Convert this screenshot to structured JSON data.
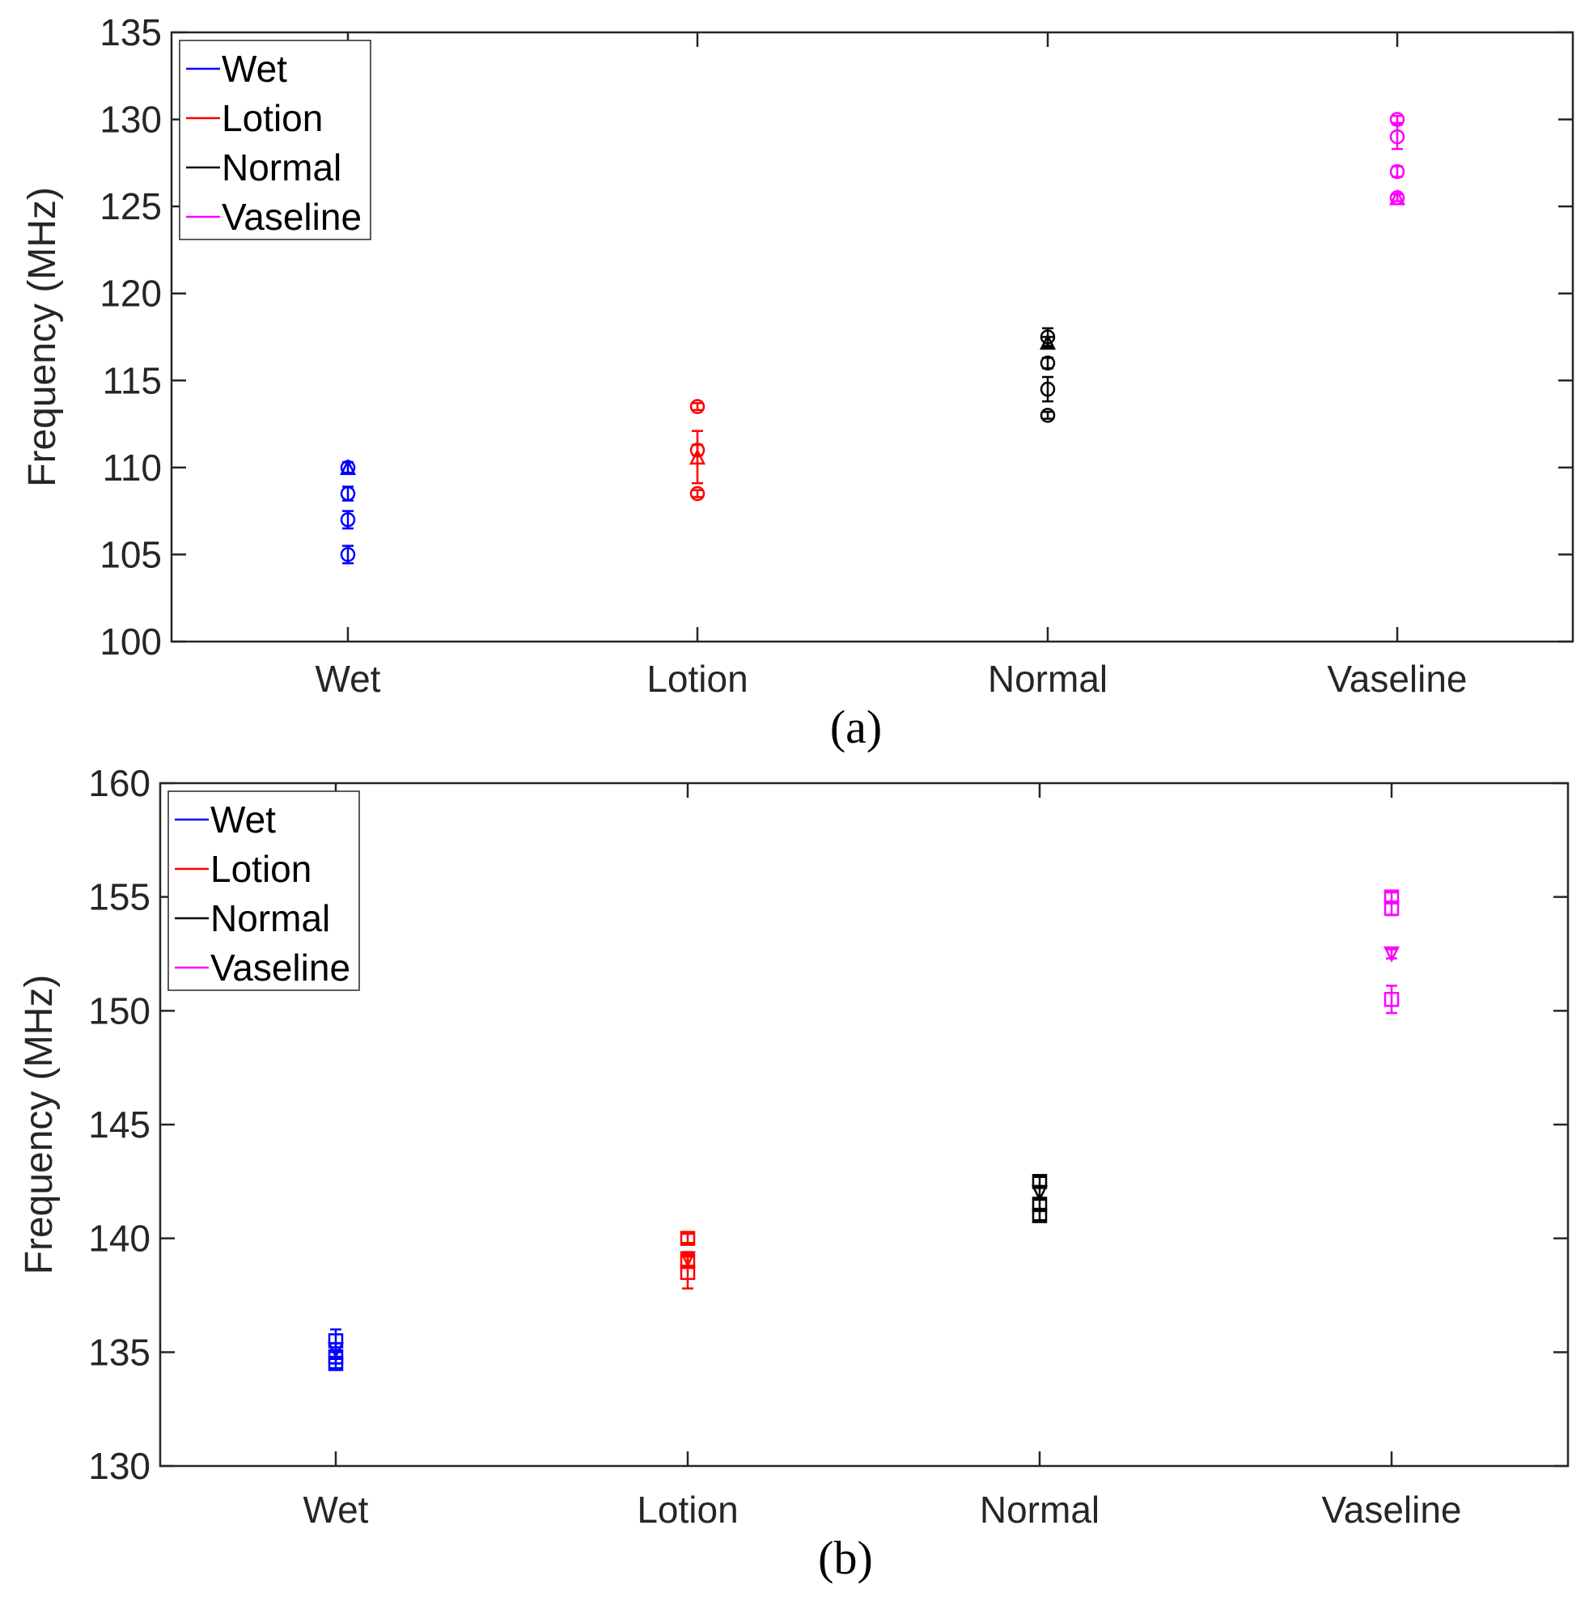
{
  "chart_data": [
    {
      "type": "scatter",
      "panel_label": "(a)",
      "title": "",
      "xlabel": "",
      "ylabel": "Frequency (MHz)",
      "categories": [
        "Wet",
        "Lotion",
        "Normal",
        "Vaseline"
      ],
      "ylim": [
        100,
        135
      ],
      "yticks": [
        100,
        105,
        110,
        115,
        120,
        125,
        130,
        135
      ],
      "legend_position": "top-left",
      "series": [
        {
          "name": "Wet",
          "color": "#0000ff",
          "category": "Wet",
          "points": [
            {
              "y": 110,
              "err": 0.3,
              "marker": "triangle-up"
            },
            {
              "y": 110,
              "err": 0.3,
              "marker": "circle"
            },
            {
              "y": 108.5,
              "err": 0.4,
              "marker": "circle"
            },
            {
              "y": 107,
              "err": 0.5,
              "marker": "circle"
            },
            {
              "y": 105,
              "err": 0.5,
              "marker": "circle"
            }
          ]
        },
        {
          "name": "Lotion",
          "color": "#ff0000",
          "category": "Lotion",
          "points": [
            {
              "y": 113.5,
              "err": 0.2,
              "marker": "circle"
            },
            {
              "y": 111,
              "err": 0.3,
              "marker": "circle"
            },
            {
              "y": 110.6,
              "err": 1.5,
              "marker": "triangle-up"
            },
            {
              "y": 108.5,
              "err": 0.2,
              "marker": "circle"
            }
          ]
        },
        {
          "name": "Normal",
          "color": "#000000",
          "category": "Normal",
          "points": [
            {
              "y": 117.5,
              "err": 0.5,
              "marker": "circle"
            },
            {
              "y": 117.2,
              "err": 0.3,
              "marker": "triangle-up"
            },
            {
              "y": 116,
              "err": 0.3,
              "marker": "circle"
            },
            {
              "y": 114.5,
              "err": 0.7,
              "marker": "circle"
            },
            {
              "y": 113,
              "err": 0.2,
              "marker": "circle"
            }
          ]
        },
        {
          "name": "Vaseline",
          "color": "#ff00ff",
          "category": "Vaseline",
          "points": [
            {
              "y": 130,
              "err": 0.2,
              "marker": "circle"
            },
            {
              "y": 129,
              "err": 0.7,
              "marker": "circle"
            },
            {
              "y": 127,
              "err": 0.3,
              "marker": "circle"
            },
            {
              "y": 125.5,
              "err": 0.2,
              "marker": "triangle-up"
            },
            {
              "y": 125.5,
              "err": 0.2,
              "marker": "circle"
            }
          ]
        }
      ]
    },
    {
      "type": "scatter",
      "panel_label": "(b)",
      "title": "",
      "xlabel": "",
      "ylabel": "Frequency (MHz)",
      "categories": [
        "Wet",
        "Lotion",
        "Normal",
        "Vaseline"
      ],
      "ylim": [
        130,
        160
      ],
      "yticks": [
        130,
        135,
        140,
        145,
        150,
        155,
        160
      ],
      "legend_position": "top-left",
      "series": [
        {
          "name": "Wet",
          "color": "#0000ff",
          "category": "Wet",
          "points": [
            {
              "y": 135.5,
              "err": 0.5,
              "marker": "square"
            },
            {
              "y": 135.1,
              "err": 0.3,
              "marker": "triangle-down"
            },
            {
              "y": 134.8,
              "err": 0.3,
              "marker": "square"
            },
            {
              "y": 134.5,
              "err": 0.2,
              "marker": "square"
            }
          ]
        },
        {
          "name": "Lotion",
          "color": "#ff0000",
          "category": "Lotion",
          "points": [
            {
              "y": 140,
              "err": 0.2,
              "marker": "square"
            },
            {
              "y": 139.1,
              "err": 0.3,
              "marker": "triangle-down"
            },
            {
              "y": 139,
              "err": 0.3,
              "marker": "square"
            },
            {
              "y": 138.5,
              "err": 0.7,
              "marker": "square"
            }
          ]
        },
        {
          "name": "Normal",
          "color": "#000000",
          "category": "Normal",
          "points": [
            {
              "y": 142.5,
              "err": 0.2,
              "marker": "square"
            },
            {
              "y": 142,
              "err": 0.3,
              "marker": "triangle-down"
            },
            {
              "y": 141.5,
              "err": 0.2,
              "marker": "square"
            },
            {
              "y": 141,
              "err": 0.2,
              "marker": "square"
            }
          ]
        },
        {
          "name": "Vaseline",
          "color": "#ff00ff",
          "category": "Vaseline",
          "points": [
            {
              "y": 155,
              "err": 0.2,
              "marker": "square"
            },
            {
              "y": 154.5,
              "err": 0.3,
              "marker": "square"
            },
            {
              "y": 152.5,
              "err": 0.2,
              "marker": "triangle-down"
            },
            {
              "y": 150.5,
              "err": 0.6,
              "marker": "square"
            }
          ]
        }
      ]
    }
  ]
}
